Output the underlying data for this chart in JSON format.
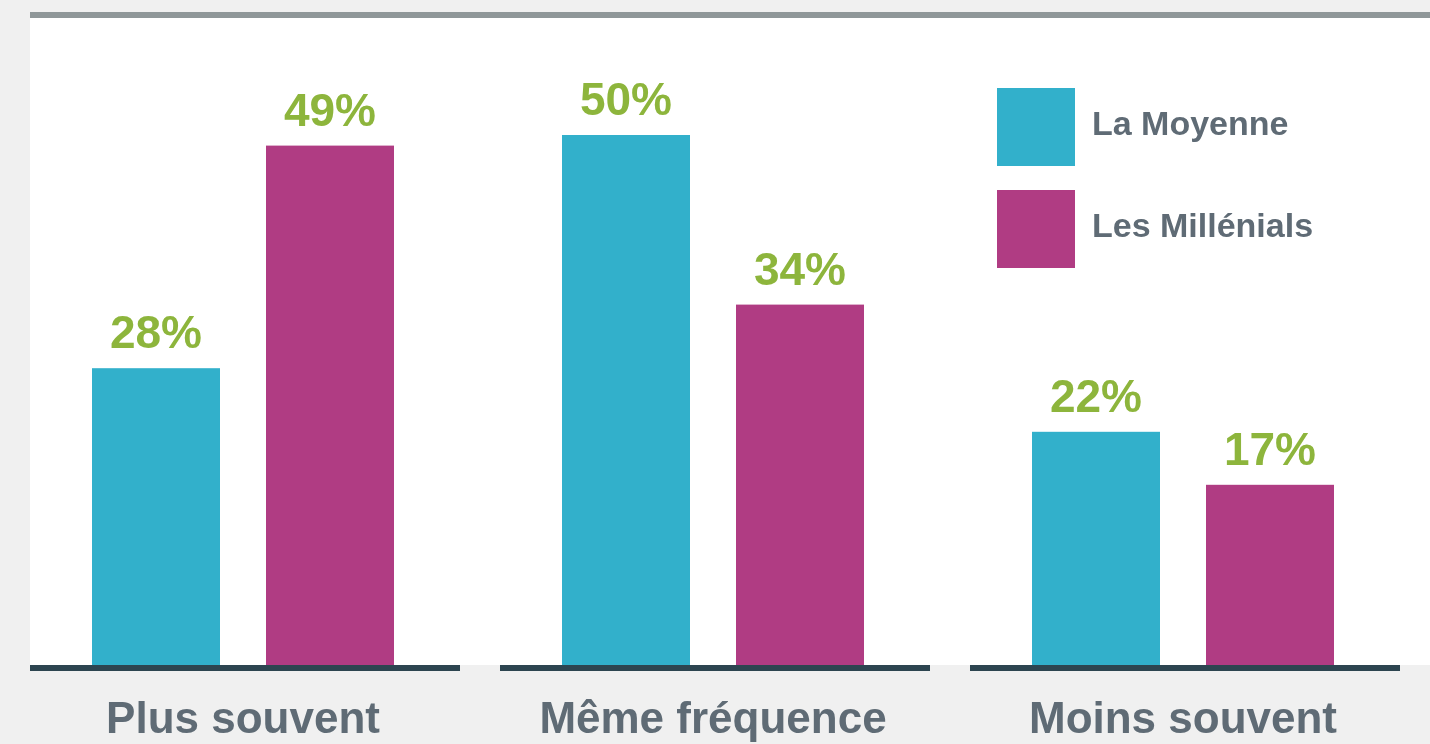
{
  "chart_data": {
    "type": "bar",
    "categories": [
      "Plus souvent",
      "Même fréquence",
      "Moins souvent"
    ],
    "series": [
      {
        "name": "La Moyenne",
        "color": "#32b0cb",
        "values": [
          28,
          50,
          22
        ],
        "value_labels": [
          "28%",
          "50%",
          "22%"
        ]
      },
      {
        "name": "Les Millénials",
        "color": "#b03c83",
        "values": [
          49,
          34,
          17
        ],
        "value_labels": [
          "49%",
          "34%",
          "17%"
        ]
      }
    ],
    "legend": "top right"
  }
}
